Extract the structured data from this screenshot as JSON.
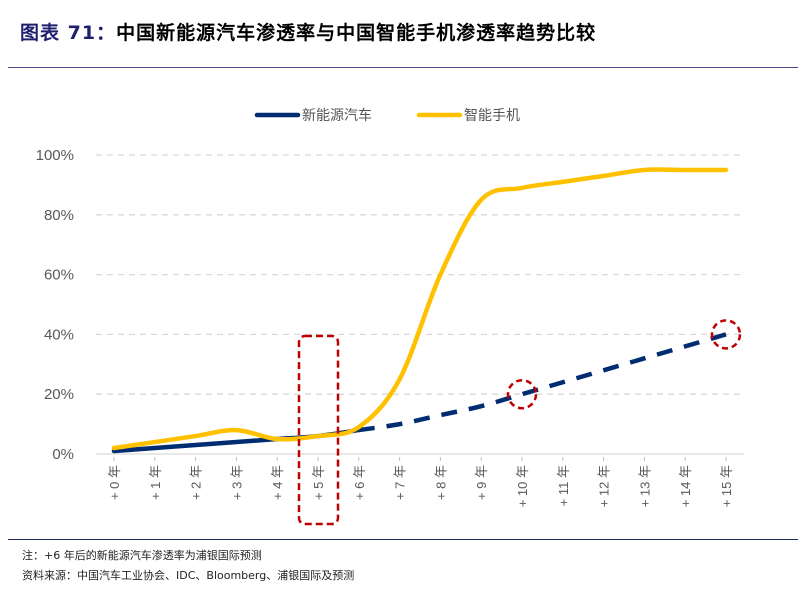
{
  "header": {
    "title_prefix": "图表 71：",
    "title_text": "中国新能源汽车渗透率与中国智能手机渗透率趋势比较"
  },
  "footer": {
    "note": "注：+6 年后的新能源汽车渗透率为浦银国际预测",
    "source": "资料来源：中国汽车工业协会、IDC、Bloomberg、浦银国际及预测"
  },
  "chart_data": {
    "type": "line",
    "title": "中国新能源汽车渗透率与中国智能手机渗透率趋势比较",
    "xlabel": "",
    "ylabel": "",
    "ylim": [
      0,
      100
    ],
    "yticks": [
      "0%",
      "20%",
      "40%",
      "60%",
      "80%",
      "100%"
    ],
    "grid": true,
    "legend_position": "top",
    "categories": [
      "+0 年",
      "+1 年",
      "+2 年",
      "+3 年",
      "+4 年",
      "+5 年",
      "+6 年",
      "+7 年",
      "+8 年",
      "+9 年",
      "+10 年",
      "+11 年",
      "+12 年",
      "+13 年",
      "+14 年",
      "+15 年"
    ],
    "series": [
      {
        "name": "新能源汽车",
        "color": "#002d72",
        "values": [
          1,
          2,
          3,
          4,
          5,
          6,
          8,
          10,
          13,
          16,
          20,
          24,
          28,
          32,
          36,
          40
        ],
        "solid_until_index": 6,
        "note": "dashed after +6 年 (forecast)"
      },
      {
        "name": "智能手机",
        "color": "#ffc000",
        "values": [
          2,
          4,
          6,
          8,
          5,
          6,
          9,
          25,
          60,
          85,
          89,
          91,
          93,
          95,
          95,
          95
        ]
      }
    ],
    "annotations": [
      {
        "type": "dashed-rounded-rect",
        "target": "+5 年",
        "color": "#c00000"
      },
      {
        "type": "dashed-circle",
        "target": "新能源汽车 @ +10 年 (20%)",
        "color": "#c00000"
      },
      {
        "type": "dashed-circle",
        "target": "新能源汽车 @ +15 年 (40%)",
        "color": "#c00000"
      }
    ]
  }
}
